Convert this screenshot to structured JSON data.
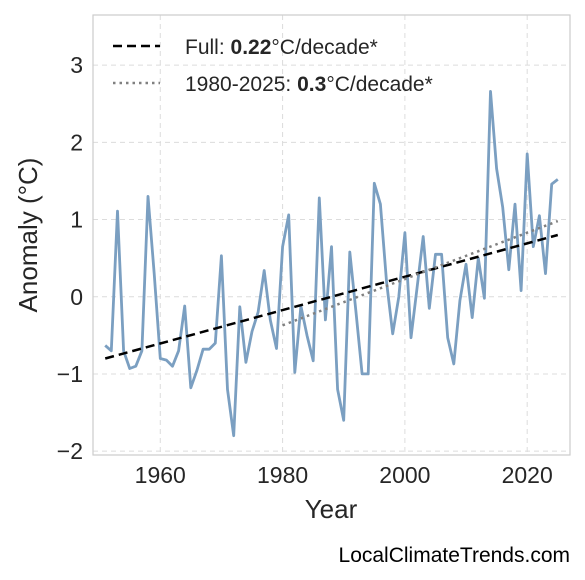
{
  "chart_data": {
    "type": "line",
    "title": "",
    "xlabel": "Year",
    "ylabel": "Anomaly (°C)",
    "xlim": [
      1949,
      2027
    ],
    "ylim": [
      -2.05,
      3.65
    ],
    "xticks": [
      1960,
      1980,
      2000,
      2020
    ],
    "yticks": [
      -2,
      -1,
      0,
      1,
      2,
      3
    ],
    "ytick_labels": [
      "−2",
      "−1",
      "0",
      "1",
      "2",
      "3"
    ],
    "grid": true,
    "legend_position": "top-left",
    "colors": {
      "series": "#7b9fc1",
      "full_trend": "#000000",
      "recent_trend": "#808080"
    },
    "series": [
      {
        "x": [
          1951,
          1952,
          1953,
          1954,
          1955,
          1956,
          1957,
          1958,
          1959,
          1960,
          1961,
          1962,
          1963,
          1964,
          1965,
          1966,
          1967,
          1968,
          1969,
          1970,
          1971,
          1972,
          1973,
          1974,
          1975,
          1976,
          1977,
          1978,
          1979,
          1980,
          1981,
          1982,
          1983,
          1984,
          1985,
          1986,
          1987,
          1988,
          1989,
          1990,
          1991,
          1992,
          1993,
          1994,
          1995,
          1996,
          1997,
          1998,
          1999,
          2000,
          2001,
          2002,
          2003,
          2004,
          2005,
          2006,
          2007,
          2008,
          2009,
          2010,
          2011,
          2012,
          2013,
          2014,
          2015,
          2016,
          2017,
          2018,
          2019,
          2020,
          2021,
          2022,
          2023,
          2024,
          2025
        ],
        "values": [
          -0.63,
          -0.7,
          1.11,
          -0.7,
          -0.93,
          -0.9,
          -0.7,
          1.3,
          0.3,
          -0.8,
          -0.82,
          -0.9,
          -0.7,
          -0.12,
          -1.18,
          -0.95,
          -0.68,
          -0.68,
          -0.6,
          0.53,
          -1.2,
          -1.8,
          -0.13,
          -0.85,
          -0.45,
          -0.2,
          0.34,
          -0.3,
          -0.67,
          0.65,
          1.06,
          -0.98,
          -0.12,
          -0.5,
          -0.83,
          1.28,
          -0.3,
          0.65,
          -1.2,
          -1.6,
          0.58,
          -0.2,
          -1.0,
          -1.0,
          1.47,
          1.2,
          0.2,
          -0.48,
          0.0,
          0.83,
          -0.53,
          0.12,
          0.78,
          -0.15,
          0.55,
          0.55,
          -0.53,
          -0.87,
          -0.05,
          0.42,
          -0.27,
          0.5,
          -0.02,
          2.66,
          1.66,
          1.16,
          0.35,
          1.2,
          0.08,
          1.85,
          0.65,
          1.05,
          0.3,
          1.46,
          1.52
        ]
      }
    ],
    "trend_lines": [
      {
        "x": [
          1951,
          2025
        ],
        "values": [
          -0.8,
          0.8
        ],
        "style": "dashed"
      },
      {
        "x": [
          1980,
          2025
        ],
        "values": [
          -0.37,
          0.98
        ],
        "style": "dotted"
      }
    ],
    "legend": [
      {
        "prefix": "Full: ",
        "value": "0.22",
        "suffix": "°C/decade*"
      },
      {
        "prefix": "1980-2025: ",
        "value": "0.3",
        "suffix": "°C/decade*"
      }
    ]
  },
  "source": "LocalClimateTrends.com"
}
